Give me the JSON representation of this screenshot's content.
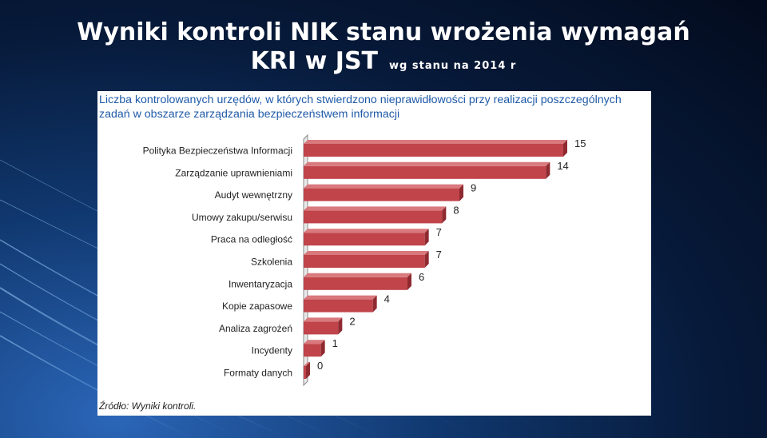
{
  "slide": {
    "title_line1": "Wyniki kontroli NIK stanu wrożenia wymagań",
    "title_line2": "KRI w JST",
    "subtitle": "wg stanu na 2014 r"
  },
  "chart_data": {
    "type": "bar",
    "orientation": "horizontal",
    "title": "Liczba kontrolowanych urzędów, w których stwierdzono nieprawidłowości przy realizacji poszczególnych zadań w obszarze zarządzania bezpieczeństwem informacji",
    "categories": [
      "Polityka Bezpieczeństwa Informacji",
      "Zarządzanie uprawnieniami",
      "Audyt wewnętrzny",
      "Umowy zakupu/serwisu",
      "Praca na odległość",
      "Szkolenia",
      "Inwentaryzacja",
      "Kopie zapasowe",
      "Analiza zagrożeń",
      "Incydenty",
      "Formaty danych"
    ],
    "values": [
      15,
      14,
      9,
      8,
      7,
      7,
      6,
      4,
      2,
      1,
      0
    ],
    "xlim": [
      0,
      15
    ],
    "grid": false,
    "legend": "none",
    "bar_color": "#c0444a",
    "source": "Źródło: Wyniki kontroli."
  }
}
